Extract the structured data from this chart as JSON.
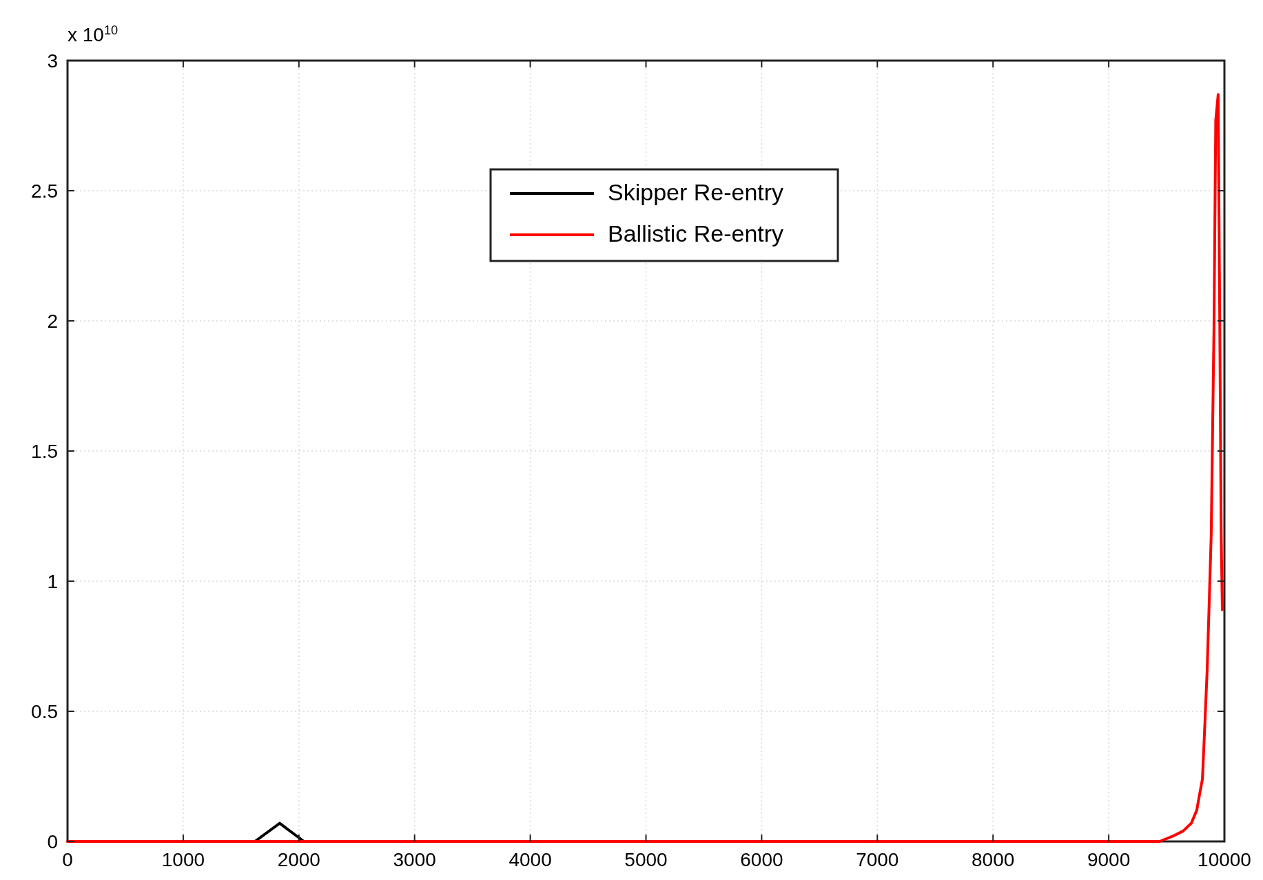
{
  "chart_data": {
    "type": "line",
    "xlim": [
      0,
      10000
    ],
    "xticks": [
      0,
      1000,
      2000,
      3000,
      4000,
      5000,
      6000,
      7000,
      8000,
      9000,
      10000
    ],
    "ylim": [
      0,
      3
    ],
    "yticks": [
      0,
      0.5,
      1,
      1.5,
      2,
      2.5,
      3
    ],
    "grid": true,
    "legend": "top",
    "line_style": "solid",
    "marker": "none",
    "annotations": [
      "x 10$^{10}$"
    ],
    "series": [
      {
        "name": "Skipper Re-entry",
        "color": "#000000",
        "x": [
          1620,
          1834,
          2043
        ],
        "values": [
          0,
          0.07,
          0
        ]
      },
      {
        "name": "Ballistic Re-entry",
        "color": "#ff0000",
        "x": [
          0,
          9440,
          9553,
          9643,
          9714,
          9761,
          9785,
          9810,
          9827,
          9851,
          9886,
          9910,
          9925,
          9946,
          9960,
          9972,
          9982
        ],
        "values": [
          0,
          0,
          0.02,
          0.04,
          0.07,
          0.12,
          0.18,
          0.24,
          0.41,
          0.66,
          1.18,
          1.98,
          2.77,
          2.87,
          1.98,
          1.18,
          0.89
        ]
      }
    ]
  }
}
